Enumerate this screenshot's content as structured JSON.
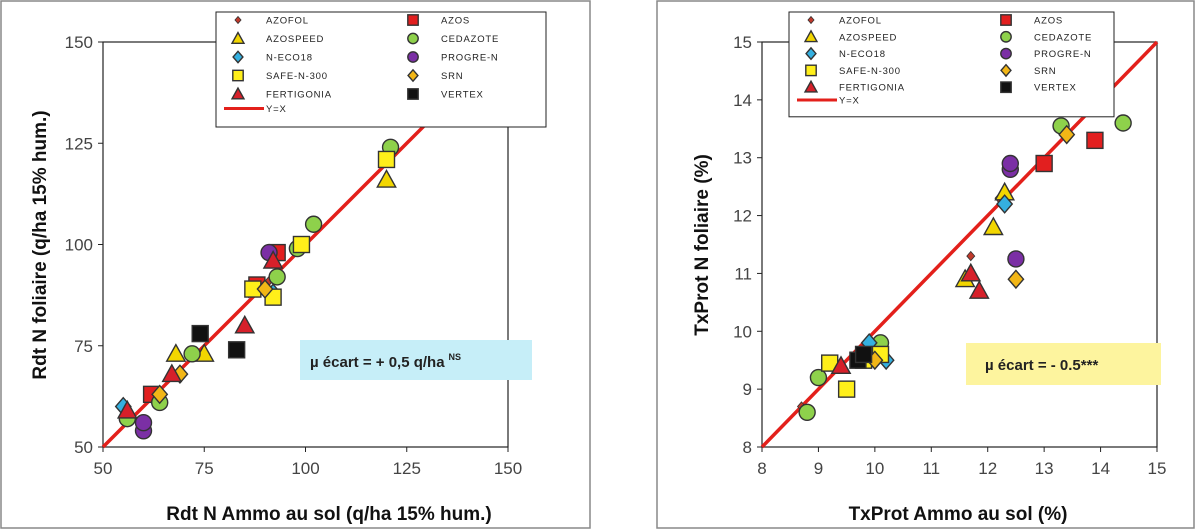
{
  "chart_data": [
    {
      "type": "scatter",
      "xlabel": "Rdt N Ammo au sol (q/ha 15% hum.)",
      "ylabel": "Rdt N foliaire (q/ha 15% hum.)",
      "xlim": [
        50,
        150
      ],
      "ylim": [
        50,
        150
      ],
      "xticks": [
        "50",
        "75",
        "100",
        "125",
        "150"
      ],
      "yticks": [
        "50",
        "75",
        "100",
        "125",
        "150"
      ],
      "reference_line": {
        "name": "Y=X",
        "color": "#e3201b"
      },
      "legend_position": "top-right",
      "annotation": {
        "text": "µ écart = + 0,5 q/ha",
        "sup": "NS",
        "bg": "#c6eef8"
      },
      "series": [
        {
          "name": "AZOFOL",
          "marker": "diamond",
          "size": "small",
          "color": "#c0392b",
          "points": [
            [
              86,
              88
            ],
            [
              91,
              91
            ]
          ]
        },
        {
          "name": "AZOS",
          "marker": "square",
          "color": "#e21f1f",
          "points": [
            [
              62,
              63
            ],
            [
              88,
              90
            ],
            [
              93,
              98
            ]
          ]
        },
        {
          "name": "AZOSPEED",
          "marker": "triangle",
          "color": "#f2d600",
          "points": [
            [
              68,
              73
            ],
            [
              75,
              73
            ],
            [
              120,
              116
            ]
          ]
        },
        {
          "name": "CEDAZOTE",
          "marker": "circle",
          "color": "#8ed14b",
          "points": [
            [
              56,
              57
            ],
            [
              64,
              61
            ],
            [
              72,
              73
            ],
            [
              93,
              92
            ],
            [
              98,
              99
            ],
            [
              102,
              105
            ],
            [
              121,
              124
            ]
          ]
        },
        {
          "name": "N-ECO18",
          "marker": "diamond",
          "color": "#35b0e0",
          "points": [
            [
              55,
              60
            ],
            [
              92,
              88
            ]
          ]
        },
        {
          "name": "PROGRE-N",
          "marker": "circle",
          "color": "#7b2fa5",
          "points": [
            [
              60,
              54
            ],
            [
              60,
              56
            ],
            [
              91,
              98
            ]
          ]
        },
        {
          "name": "SAFE-N-300",
          "marker": "square",
          "color": "#ffef1a",
          "points": [
            [
              87,
              89
            ],
            [
              92,
              87
            ],
            [
              99,
              100
            ],
            [
              120,
              121
            ]
          ]
        },
        {
          "name": "SRN",
          "marker": "diamond",
          "color": "#f2b616",
          "points": [
            [
              64,
              63
            ],
            [
              69,
              68
            ],
            [
              90,
              89
            ]
          ]
        },
        {
          "name": "FERTIGONIA",
          "marker": "triangle",
          "color": "#d6202a",
          "points": [
            [
              56,
              59
            ],
            [
              67,
              68
            ],
            [
              85,
              80
            ],
            [
              92,
              96
            ]
          ]
        },
        {
          "name": "VERTEX",
          "marker": "square",
          "color": "#111111",
          "points": [
            [
              74,
              78
            ],
            [
              83,
              74
            ]
          ]
        }
      ]
    },
    {
      "type": "scatter",
      "xlabel": "TxProt Ammo au sol (%)",
      "ylabel": "TxProt N foliaire (%)",
      "xlim": [
        8,
        15
      ],
      "ylim": [
        8,
        15
      ],
      "xticks": [
        "8",
        "9",
        "10",
        "11",
        "12",
        "13",
        "14",
        "15"
      ],
      "yticks": [
        "8",
        "9",
        "10",
        "11",
        "12",
        "13",
        "14",
        "15"
      ],
      "reference_line": {
        "name": "Y=X",
        "color": "#e3201b"
      },
      "legend_position": "top-right",
      "annotation": {
        "text": "µ écart = - 0.5***",
        "sup": "",
        "bg": "#fdf49e"
      },
      "series": [
        {
          "name": "AZOFOL",
          "marker": "diamond",
          "size": "small",
          "color": "#c0392b",
          "points": [
            [
              8.7,
              8.7
            ],
            [
              11.7,
              11.3
            ],
            [
              12.2,
              12.3
            ]
          ]
        },
        {
          "name": "AZOS",
          "marker": "square",
          "color": "#e21f1f",
          "points": [
            [
              13.0,
              12.9
            ],
            [
              13.9,
              13.3
            ]
          ]
        },
        {
          "name": "AZOSPEED",
          "marker": "triangle",
          "color": "#f2d600",
          "points": [
            [
              11.6,
              10.9
            ],
            [
              12.1,
              11.8
            ],
            [
              12.3,
              12.4
            ]
          ]
        },
        {
          "name": "CEDAZOTE",
          "marker": "circle",
          "color": "#8ed14b",
          "points": [
            [
              8.8,
              8.6
            ],
            [
              9.0,
              9.2
            ],
            [
              10.1,
              9.8
            ],
            [
              13.3,
              13.55
            ],
            [
              14.4,
              13.6
            ]
          ]
        },
        {
          "name": "N-ECO18",
          "marker": "diamond",
          "color": "#35b0e0",
          "points": [
            [
              9.9,
              9.8
            ],
            [
              10.2,
              9.5
            ],
            [
              12.3,
              12.2
            ]
          ]
        },
        {
          "name": "PROGRE-N",
          "marker": "circle",
          "color": "#7b2fa5",
          "points": [
            [
              12.4,
              12.8
            ],
            [
              12.4,
              12.9
            ],
            [
              12.5,
              11.25
            ]
          ]
        },
        {
          "name": "SAFE-N-300",
          "marker": "square",
          "color": "#ffef1a",
          "points": [
            [
              9.2,
              9.45
            ],
            [
              9.5,
              9.0
            ],
            [
              9.8,
              9.5
            ],
            [
              10.1,
              9.6
            ]
          ]
        },
        {
          "name": "SRN",
          "marker": "diamond",
          "color": "#f2b616",
          "points": [
            [
              10.0,
              9.5
            ],
            [
              12.5,
              10.9
            ],
            [
              13.4,
              13.4
            ]
          ]
        },
        {
          "name": "FERTIGONIA",
          "marker": "triangle",
          "color": "#d6202a",
          "points": [
            [
              9.4,
              9.4
            ],
            [
              11.7,
              11.0
            ],
            [
              11.85,
              10.7
            ]
          ]
        },
        {
          "name": "VERTEX",
          "marker": "square",
          "color": "#111111",
          "points": [
            [
              9.7,
              9.5
            ],
            [
              9.8,
              9.6
            ]
          ]
        }
      ]
    }
  ]
}
